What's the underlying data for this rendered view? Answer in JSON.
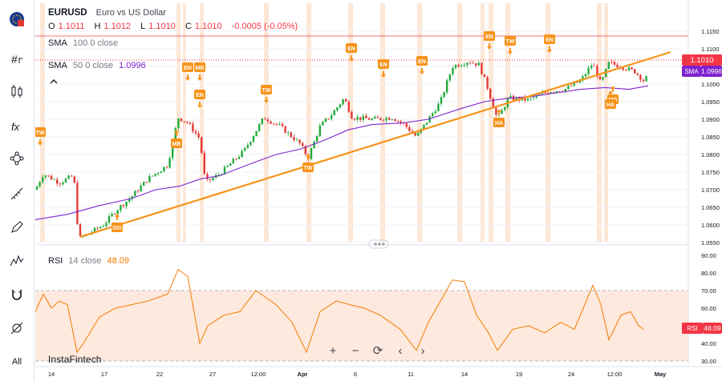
{
  "sidebar": {
    "items": [
      {
        "name": "region-flag-icon"
      },
      {
        "name": "hash-indicator-icon"
      },
      {
        "name": "candles-icon"
      },
      {
        "name": "fx-formula-icon"
      },
      {
        "name": "nodes-icon"
      },
      {
        "name": "ruler-tools-icon"
      },
      {
        "name": "pen-icon"
      },
      {
        "name": "pattern-icon"
      },
      {
        "name": "magnet-icon"
      },
      {
        "name": "hide-drawings-icon"
      },
      {
        "name": "all-label",
        "label": "All"
      }
    ]
  },
  "legend": {
    "symbol": "EURUSD",
    "description": "Euro vs US Dollar",
    "o_label": "O",
    "o_value": "1.1011",
    "h_label": "H",
    "h_value": "1.1012",
    "l_label": "L",
    "l_value": "1.1010",
    "c_label": "C",
    "c_value": "1.1010",
    "change": "-0.0005 (-0.05%)",
    "sma100_name": "SMA",
    "sma100_params": "100  0  close",
    "sma50_name": "SMA",
    "sma50_params": "50  0  close",
    "sma50_value": "1.0996"
  },
  "rsi_legend": {
    "name": "RSI",
    "params": "14  close",
    "value": "48.09"
  },
  "price_axis": {
    "ticks": [
      "1.1150",
      "1.1100",
      "1.1050",
      "1.1000",
      "1.0950",
      "1.0900",
      "1.0850",
      "1.0800",
      "1.0750",
      "1.0700",
      "1.0650",
      "1.0600",
      "1.0550"
    ],
    "current_price_label": "1.1010",
    "sma_label": "SMA",
    "sma_value": "1.0996"
  },
  "rsi_axis": {
    "ticks": [
      "90.00",
      "80.00",
      "70.00",
      "60.00",
      "50.00",
      "40.00",
      "30.00"
    ],
    "label_name": "RSI",
    "label_value": "48.09"
  },
  "time_axis": {
    "labels": [
      "14",
      "17",
      "22",
      "27",
      "12:00",
      "Apr",
      "6",
      "11",
      "14",
      "19",
      "24",
      "12:00",
      "May"
    ]
  },
  "watermark": "InstaFintech",
  "zoom": {
    "plus": "+",
    "minus": "−",
    "reset": "⟳",
    "left": "‹",
    "right": "›"
  },
  "events": [
    {
      "code": "TW"
    },
    {
      "code": "MB"
    },
    {
      "code": "EN"
    },
    {
      "code": "MB"
    },
    {
      "code": "EN"
    },
    {
      "code": "TW"
    },
    {
      "code": "TW"
    },
    {
      "code": "EN"
    },
    {
      "code": "EN"
    },
    {
      "code": "EN"
    },
    {
      "code": "EN"
    },
    {
      "code": "HA"
    },
    {
      "code": "TW"
    },
    {
      "code": "EN"
    },
    {
      "code": "MB"
    },
    {
      "code": "ENHA"
    },
    {
      "code": "SIG"
    }
  ],
  "colors": {
    "accent_orange": "#f7931a",
    "sma100": "#f23645",
    "sma50": "#7e22ce",
    "candle_up": "#22ab3a",
    "candle_down": "#e53935",
    "rsi_line": "#f57c00",
    "rsi_band": "#fde9dd"
  }
}
